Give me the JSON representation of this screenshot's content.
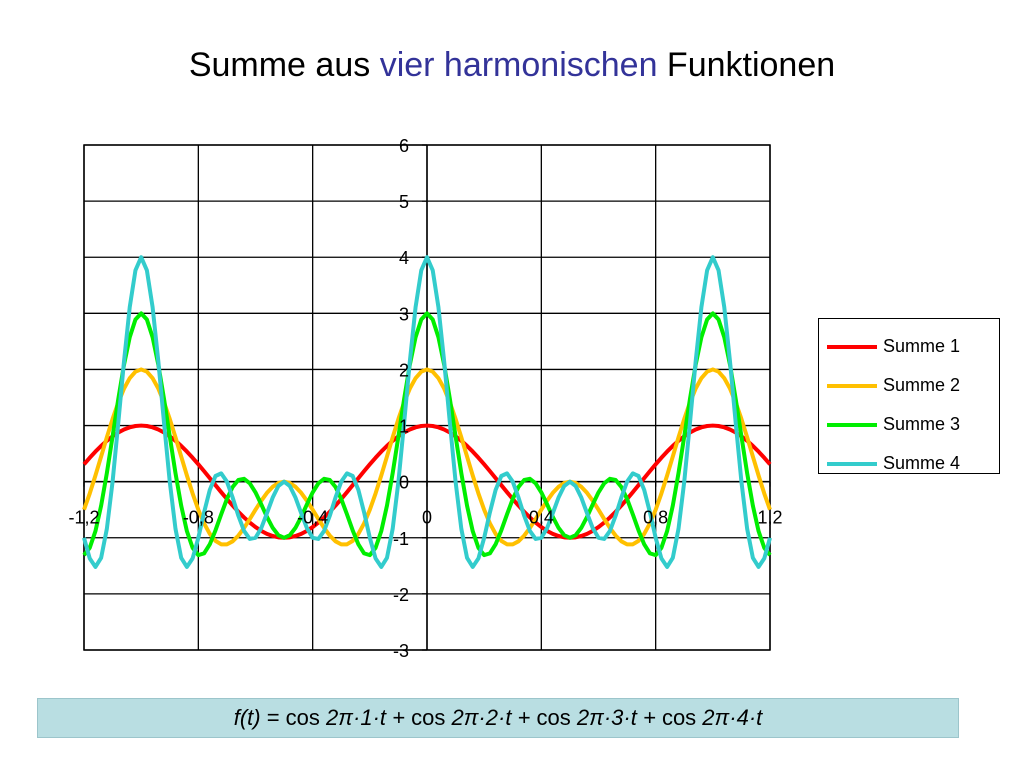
{
  "title": {
    "part1": "Summe aus ",
    "highlight": "vier harmonischen",
    "part2": " Funktionen",
    "highlight_color": "#333399"
  },
  "chart_data": {
    "type": "line",
    "title": "Summe aus vier harmonischen Funktionen",
    "xlabel": "",
    "ylabel": "",
    "xlim": [
      -1.2,
      1.2
    ],
    "ylim": [
      -3,
      6
    ],
    "x_ticks": [
      -1.2,
      -0.8,
      -0.4,
      0,
      0.4,
      0.8,
      1.2
    ],
    "x_tick_labels": [
      "-1,2",
      "-0,8",
      "-0,4",
      "0",
      "0,4",
      "0,8",
      "1,2"
    ],
    "y_ticks": [
      -3,
      -2,
      -1,
      0,
      1,
      2,
      3,
      4,
      5,
      6
    ],
    "y_tick_labels": [
      "-3",
      "-2",
      "-1",
      "0",
      "1",
      "2",
      "3",
      "4",
      "5",
      "6"
    ],
    "grid": true,
    "legend_position": "right",
    "function": "sum_{k=1}^{n} cos(2*pi*k*t)",
    "x_step": 0.02,
    "series": [
      {
        "name": "Summe 1",
        "harmonics": 1,
        "color": "#ff0000"
      },
      {
        "name": "Summe 2",
        "harmonics": 2,
        "color": "#ffc000"
      },
      {
        "name": "Summe 3",
        "harmonics": 3,
        "color": "#00ee00"
      },
      {
        "name": "Summe 4",
        "harmonics": 4,
        "color": "#33cccc"
      }
    ]
  },
  "formula": {
    "ft": "f(t)",
    "eq": " = ",
    "cos1": "cos ",
    "term1": "2π·1·t",
    "plus1": " + ",
    "cos2": "cos ",
    "term2": "2π·2·t",
    "plus2": " + ",
    "cos3": "cos ",
    "term3": "2π·3·t",
    "plus3": " + ",
    "cos4": "cos ",
    "term4": "2π·4·t"
  }
}
